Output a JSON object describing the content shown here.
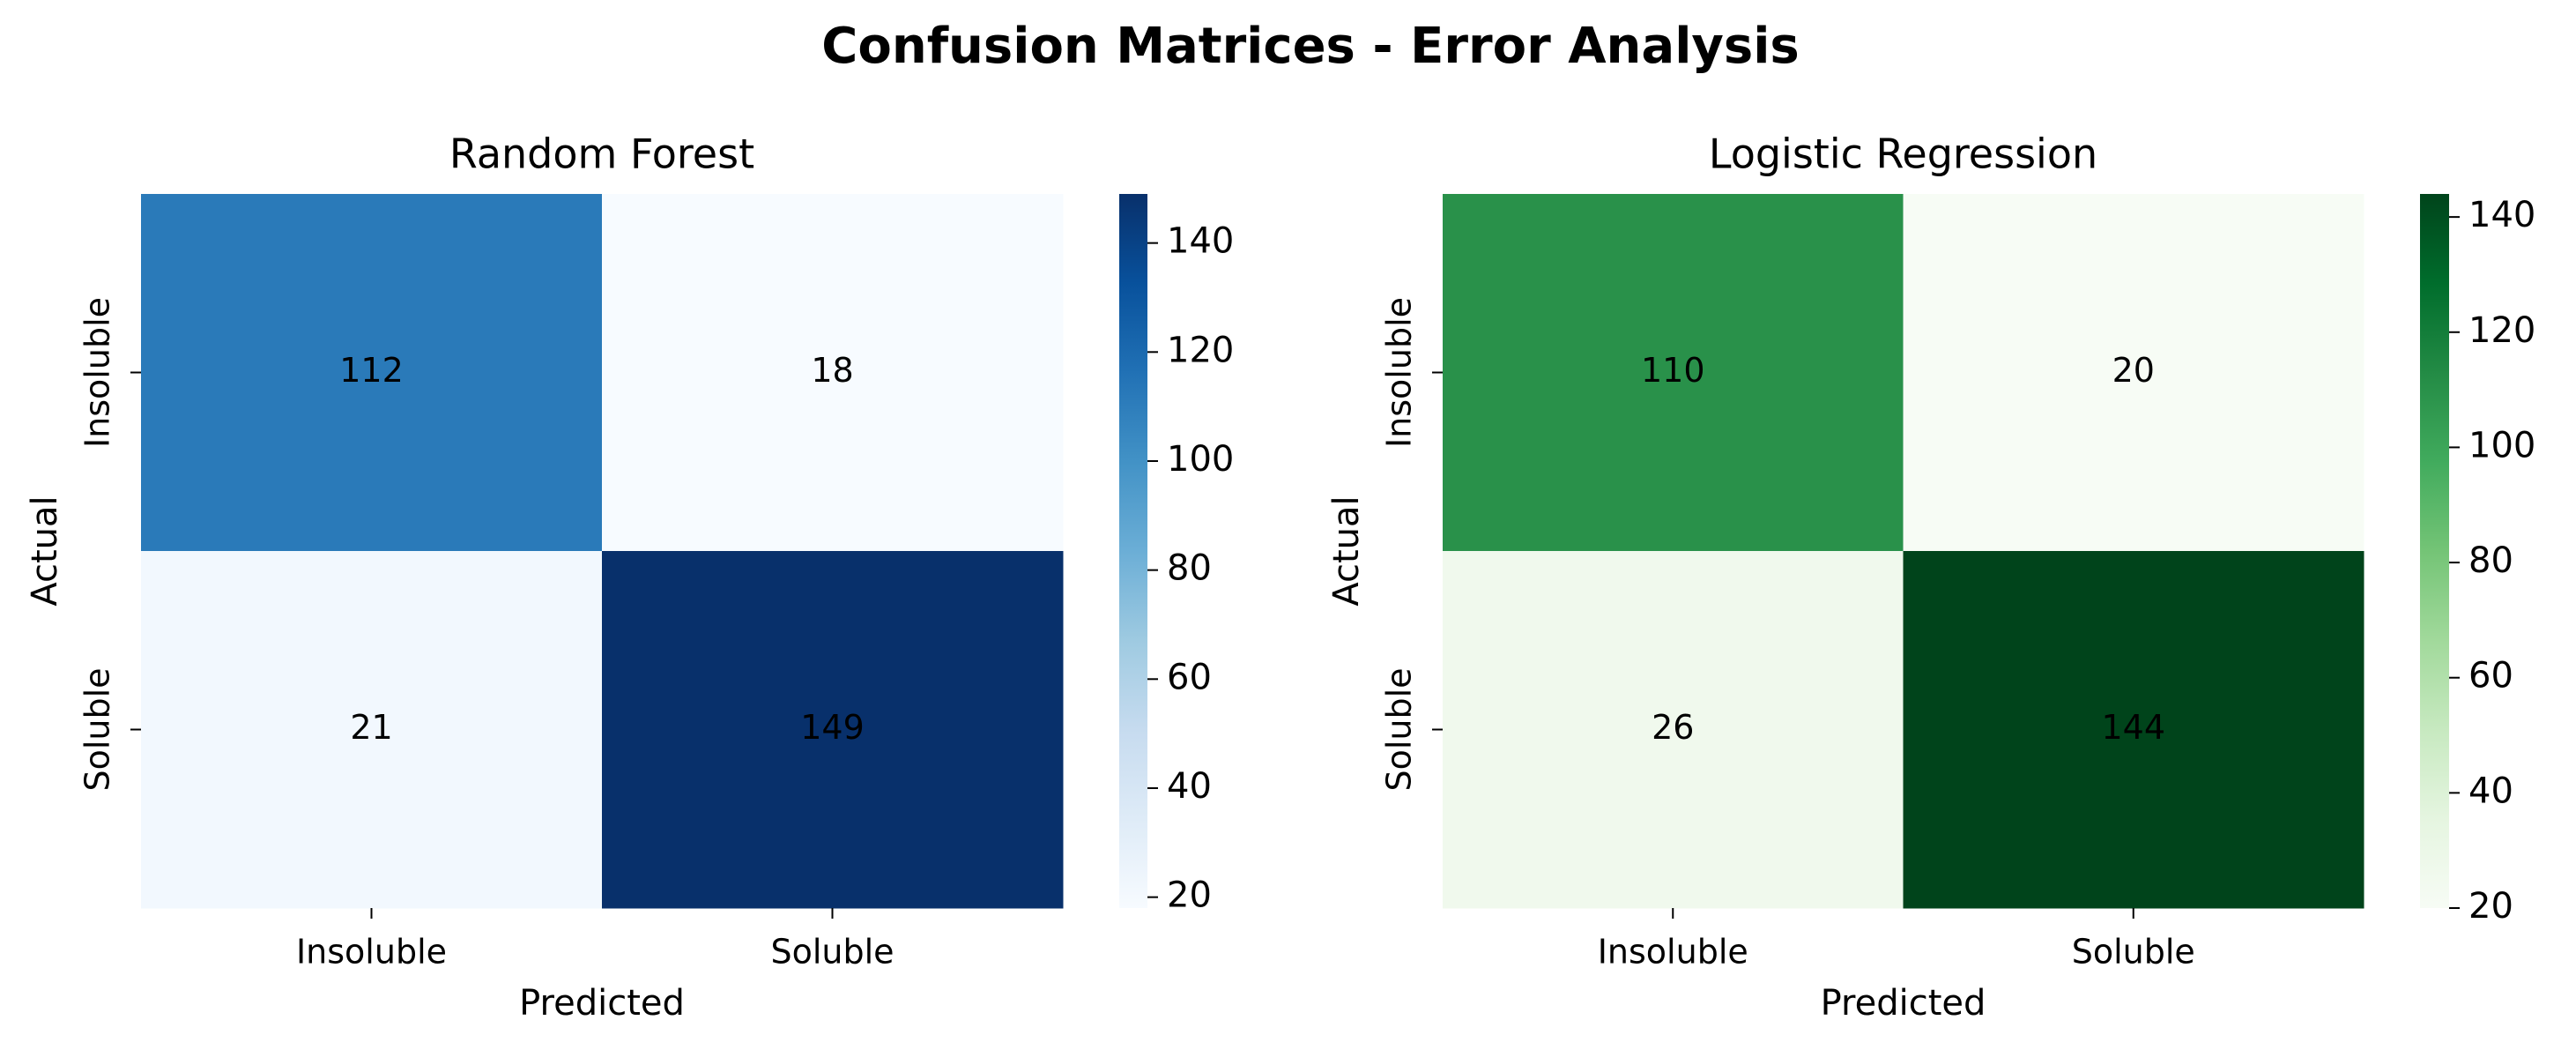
{
  "title": "Confusion Matrices - Error Analysis",
  "chart_data": [
    {
      "type": "heatmap",
      "title": "Random Forest",
      "xlabel": "Predicted",
      "ylabel": "Actual",
      "x_categories": [
        "Insoluble",
        "Soluble"
      ],
      "y_categories": [
        "Insoluble",
        "Soluble"
      ],
      "values": [
        [
          112,
          18
        ],
        [
          21,
          149
        ]
      ],
      "colormap": "Blues",
      "color_min": "#f7fbff",
      "color_max": "#08306b",
      "vmin": 18,
      "vmax": 149,
      "colorbar_ticks": [
        20,
        40,
        60,
        80,
        100,
        120,
        140
      ]
    },
    {
      "type": "heatmap",
      "title": "Logistic Regression",
      "xlabel": "Predicted",
      "ylabel": "Actual",
      "x_categories": [
        "Insoluble",
        "Soluble"
      ],
      "y_categories": [
        "Insoluble",
        "Soluble"
      ],
      "values": [
        [
          110,
          20
        ],
        [
          26,
          144
        ]
      ],
      "colormap": "Greens",
      "color_min": "#f7fcf5",
      "color_max": "#00441b",
      "vmin": 20,
      "vmax": 144,
      "colorbar_ticks": [
        20,
        40,
        60,
        80,
        100,
        120,
        140
      ]
    }
  ]
}
